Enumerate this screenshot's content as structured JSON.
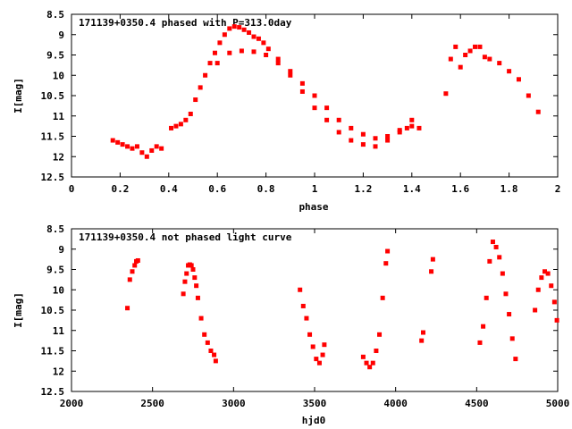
{
  "chart_data": [
    {
      "type": "scatter",
      "title": "171139+0350.4 phased with P=313.0day",
      "xlabel": "phase",
      "ylabel": "I[mag]",
      "xlim": [
        0,
        2
      ],
      "ylim": [
        12.5,
        8.5
      ],
      "y_inverted": true,
      "xticks": [
        "0",
        "0.2",
        "0.4",
        "0.6",
        "0.8",
        "1",
        "1.2",
        "1.4",
        "1.6",
        "1.8",
        "2"
      ],
      "yticks": [
        "8.5",
        "9",
        "9.5",
        "10",
        "10.5",
        "11",
        "11.5",
        "12",
        "12.5"
      ],
      "color": "#ff0000",
      "series": [
        {
          "x": [
            0.17,
            0.19,
            0.21,
            0.23,
            0.25,
            0.27,
            0.29,
            0.31,
            0.33,
            0.35,
            0.37,
            0.41,
            0.43,
            0.45,
            0.47,
            0.49,
            0.51,
            0.53,
            0.55,
            0.57,
            0.59,
            0.61,
            0.63,
            0.65,
            0.67,
            0.69,
            0.71,
            0.73,
            0.75,
            0.77,
            0.79,
            0.81,
            0.85,
            0.9,
            0.95,
            1.0,
            1.05,
            1.1,
            1.15,
            1.2,
            1.25,
            1.3,
            1.35,
            1.4,
            1.43,
            0.6,
            0.65,
            0.7,
            0.75,
            0.8,
            0.85,
            0.9,
            0.95,
            1.0,
            1.05,
            1.1,
            1.15,
            1.2,
            1.25,
            1.3,
            1.35,
            1.38,
            1.4,
            1.54,
            1.56,
            1.58,
            1.6,
            1.62,
            1.64,
            1.66,
            1.68,
            1.7,
            1.72,
            1.76,
            1.8,
            1.84,
            1.88,
            1.92
          ],
          "y": [
            11.6,
            11.65,
            11.7,
            11.75,
            11.8,
            11.75,
            11.9,
            12.0,
            11.85,
            11.75,
            11.8,
            11.3,
            11.25,
            11.2,
            11.1,
            10.95,
            10.6,
            10.3,
            10.0,
            9.7,
            9.45,
            9.2,
            9.0,
            8.85,
            8.8,
            8.82,
            8.88,
            8.95,
            9.05,
            9.1,
            9.2,
            9.35,
            9.6,
            9.9,
            10.2,
            10.5,
            10.8,
            11.1,
            11.3,
            11.45,
            11.55,
            11.5,
            11.35,
            11.25,
            11.3,
            9.7,
            9.45,
            9.4,
            9.42,
            9.5,
            9.7,
            10.0,
            10.4,
            10.8,
            11.1,
            11.4,
            11.6,
            11.7,
            11.75,
            11.6,
            11.4,
            11.3,
            11.1,
            10.45,
            9.6,
            9.3,
            9.8,
            9.5,
            9.4,
            9.3,
            9.3,
            9.55,
            9.6,
            9.7,
            9.9,
            10.1,
            10.5,
            10.9
          ]
        }
      ]
    },
    {
      "type": "scatter",
      "title": "171139+0350.4 not phased light curve",
      "xlabel": "hjd0",
      "ylabel": "I[mag]",
      "xlim": [
        2000,
        5000
      ],
      "ylim": [
        12.5,
        8.5
      ],
      "y_inverted": true,
      "xticks": [
        "2000",
        "2500",
        "3000",
        "3500",
        "4000",
        "4500",
        "5000"
      ],
      "yticks": [
        "8.5",
        "9",
        "9.5",
        "10",
        "10.5",
        "11",
        "11.5",
        "12",
        "12.5"
      ],
      "color": "#ff0000",
      "series": [
        {
          "x": [
            2345,
            2360,
            2375,
            2390,
            2400,
            2410,
            2690,
            2700,
            2710,
            2720,
            2730,
            2740,
            2750,
            2760,
            2770,
            2780,
            2800,
            2820,
            2840,
            2860,
            2880,
            2890,
            3410,
            3430,
            3450,
            3470,
            3490,
            3510,
            3530,
            3550,
            3560,
            3800,
            3820,
            3840,
            3860,
            3880,
            3900,
            3920,
            3940,
            3950,
            4160,
            4170,
            4220,
            4230,
            4520,
            4540,
            4560,
            4580,
            4600,
            4620,
            4640,
            4660,
            4680,
            4700,
            4720,
            4740,
            4860,
            4880,
            4900,
            4920,
            4940,
            4960,
            4980,
            4995
          ],
          "y": [
            10.45,
            9.75,
            9.55,
            9.4,
            9.3,
            9.28,
            10.1,
            9.8,
            9.6,
            9.4,
            9.38,
            9.4,
            9.5,
            9.7,
            9.9,
            10.2,
            10.7,
            11.1,
            11.3,
            11.5,
            11.6,
            11.75,
            10.0,
            10.4,
            10.7,
            11.1,
            11.4,
            11.7,
            11.8,
            11.6,
            11.35,
            11.65,
            11.8,
            11.9,
            11.8,
            11.5,
            11.1,
            10.2,
            9.35,
            9.05,
            11.25,
            11.05,
            9.55,
            9.25,
            11.3,
            10.9,
            10.2,
            9.3,
            8.82,
            8.95,
            9.2,
            9.6,
            10.1,
            10.6,
            11.2,
            11.7,
            10.5,
            10.0,
            9.7,
            9.55,
            9.6,
            9.9,
            10.3,
            10.75
          ]
        }
      ]
    }
  ]
}
